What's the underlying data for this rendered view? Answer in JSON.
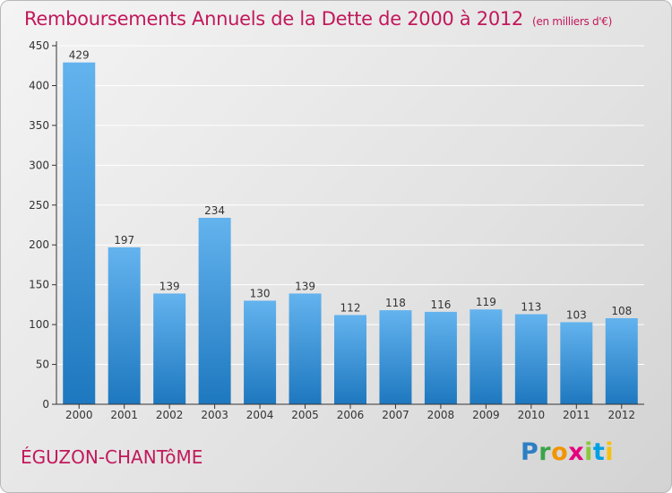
{
  "title": "Remboursements Annuels de la Dette de 2000 à 2012",
  "subtitle": "(en milliers d'€)",
  "place_name": "ÉGUZON-CHANTôME",
  "brand": {
    "letters": [
      "P",
      "r",
      "o",
      "x",
      "i",
      "t",
      "i"
    ],
    "colors": [
      "#2d7fc4",
      "#3ba44a",
      "#f29400",
      "#e6007e",
      "#8dc63f",
      "#00a0e3",
      "#f9c00c"
    ]
  },
  "colors": {
    "title": "#c2185b",
    "bar_light": "#63b3ee",
    "bar_dark": "#1e78bf",
    "grid": "#ffffff",
    "axis": "#333333"
  },
  "chart_data": {
    "type": "bar",
    "title": "Remboursements Annuels de la Dette de 2000 à 2012",
    "ylabel": "en milliers d'€",
    "xlabel": "",
    "categories": [
      "2000",
      "2001",
      "2002",
      "2003",
      "2004",
      "2005",
      "2006",
      "2007",
      "2008",
      "2009",
      "2010",
      "2011",
      "2012"
    ],
    "values": [
      429,
      197,
      139,
      234,
      130,
      139,
      112,
      118,
      116,
      119,
      113,
      103,
      108
    ],
    "ylim": [
      0,
      450
    ],
    "yticks": [
      0,
      50,
      100,
      150,
      200,
      250,
      300,
      350,
      400,
      450
    ],
    "grid": true
  }
}
